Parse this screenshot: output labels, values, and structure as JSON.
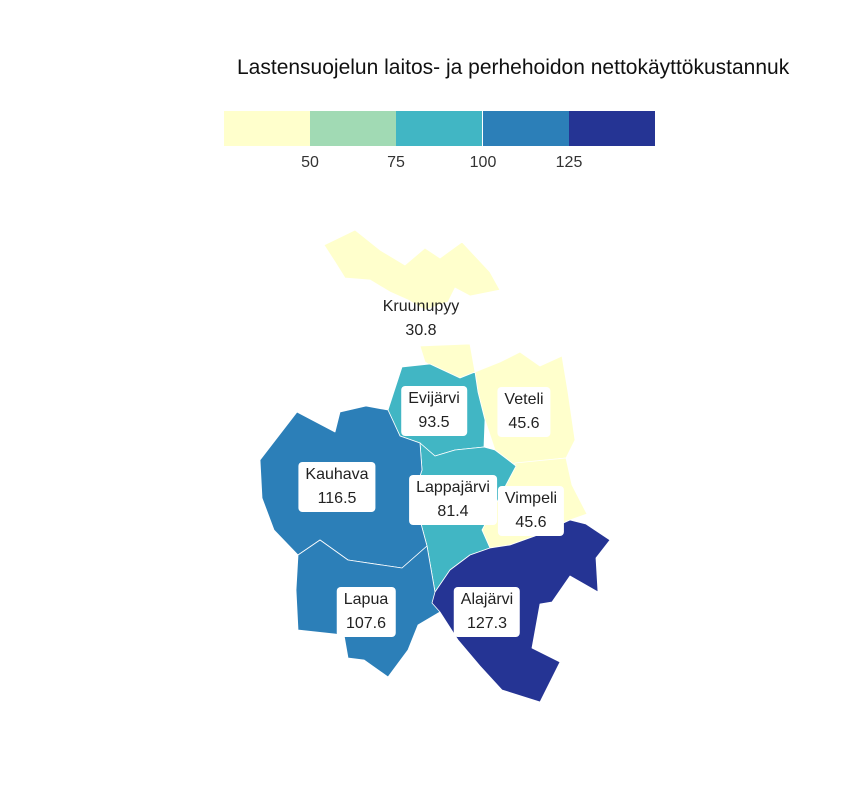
{
  "title": "Lastensuojelun laitos- ja perhehoidon nettokäyttökustannuk",
  "legend": {
    "colors": [
      "#ffffcc",
      "#a1dab4",
      "#41b6c4",
      "#2c7fb8",
      "#253494"
    ],
    "breaks": [
      "50",
      "75",
      "100",
      "125"
    ]
  },
  "regions": [
    {
      "name": "Kruunupyy",
      "value": "30.8",
      "color": "#ffffcc"
    },
    {
      "name": "Veteli",
      "value": "45.6",
      "color": "#ffffcc"
    },
    {
      "name": "Vimpeli",
      "value": "45.6",
      "color": "#ffffcc"
    },
    {
      "name": "Evijärvi",
      "value": "93.5",
      "color": "#41b6c4"
    },
    {
      "name": "Lappajärvi",
      "value": "81.4",
      "color": "#41b6c4"
    },
    {
      "name": "Kauhava",
      "value": "116.5",
      "color": "#2c7fb8"
    },
    {
      "name": "Lapua",
      "value": "107.6",
      "color": "#2c7fb8"
    },
    {
      "name": "Alajärvi",
      "value": "127.3",
      "color": "#253494"
    }
  ]
}
